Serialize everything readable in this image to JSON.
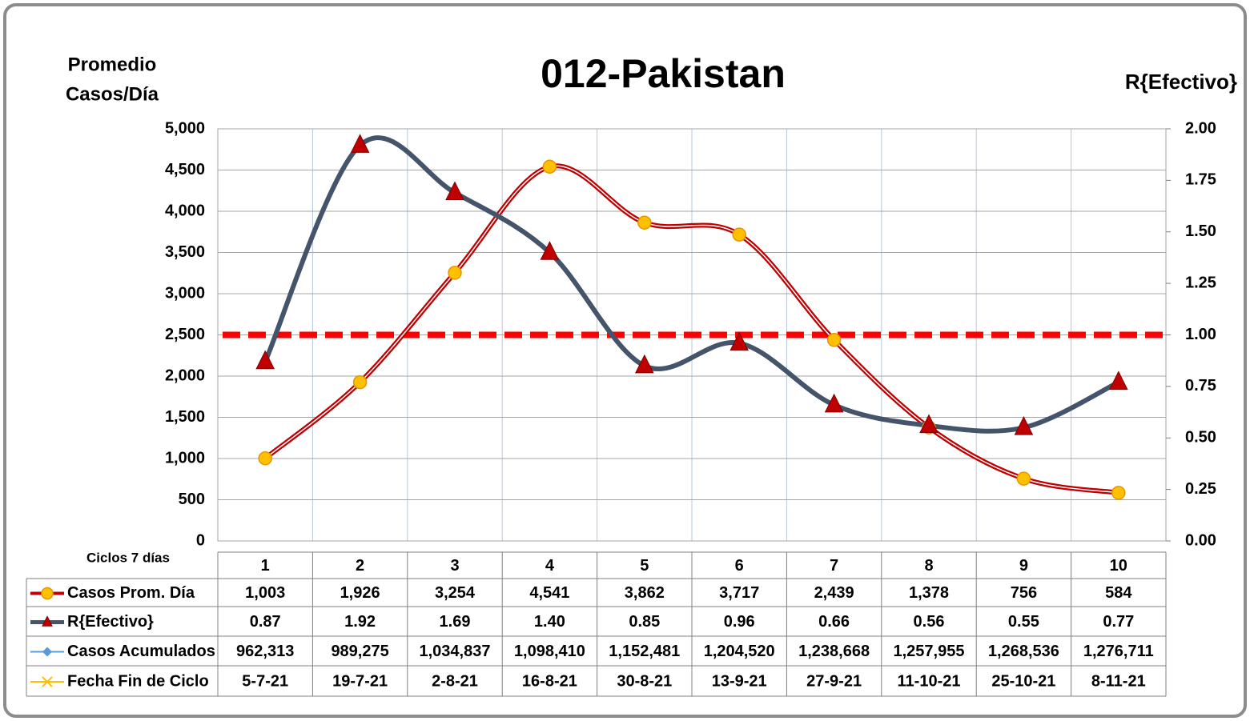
{
  "chart_data": {
    "type": "line",
    "title": "012-Pakistan",
    "y_label": [
      "Promedio",
      "Casos/Día"
    ],
    "y2_label": "R{Efectivo}",
    "table_label": "Ciclos 7 días",
    "categories": [
      "1",
      "2",
      "3",
      "4",
      "5",
      "6",
      "7",
      "8",
      "9",
      "10"
    ],
    "ylim": [
      0,
      5000
    ],
    "yticks": [
      0,
      500,
      {
        "value": 1000,
        "label": "1,000"
      },
      {
        "value": 1500,
        "label": "1,500"
      },
      {
        "value": 2000,
        "label": "2,000"
      },
      {
        "value": 2500,
        "label": "2,500"
      },
      {
        "value": 3000,
        "label": "3,000"
      },
      {
        "value": 3500,
        "label": "3,500"
      },
      {
        "value": 4000,
        "label": "4,000"
      },
      {
        "value": 4500,
        "label": "4,500"
      },
      {
        "value": 5000,
        "label": "5,000"
      }
    ],
    "y2lim": [
      0,
      2
    ],
    "y2ticks": [
      {
        "value": 0,
        "label": "0.00"
      },
      {
        "value": 0.25,
        "label": "0.25"
      },
      {
        "value": 0.5,
        "label": "0.50"
      },
      {
        "value": 0.75,
        "label": "0.75"
      },
      {
        "value": 1,
        "label": "1.00"
      },
      {
        "value": 1.25,
        "label": "1.25"
      },
      {
        "value": 1.5,
        "label": "1.50"
      },
      {
        "value": 1.75,
        "label": "1.75"
      },
      {
        "value": 2,
        "label": "2.00"
      }
    ],
    "grid": true,
    "reference_lines": [
      {
        "value": 1,
        "axis": "y2",
        "color": "#ff0000"
      }
    ],
    "series": [
      {
        "name": "Casos Prom. Día",
        "color": "#c00000",
        "marker": "circle",
        "marker_color": "#ffc000",
        "values": [
          1003,
          1926,
          3254,
          4541,
          3862,
          3717,
          2439,
          1378,
          756,
          584
        ],
        "value_labels": [
          "1,003",
          "1,926",
          "3,254",
          "4,541",
          "3,862",
          "3,717",
          "2,439",
          "1,378",
          "756",
          "584"
        ]
      },
      {
        "name": "R{Efectivo}",
        "color": "#44546a",
        "axis": "y2",
        "marker": "triangle",
        "marker_color": "#c00000",
        "values": [
          0.87,
          1.92,
          1.69,
          1.4,
          0.85,
          0.96,
          0.66,
          0.56,
          0.55,
          0.77
        ],
        "value_labels": [
          "0.87",
          "1.92",
          "1.69",
          "1.40",
          "0.85",
          "0.96",
          "0.66",
          "0.56",
          "0.55",
          "0.77"
        ]
      }
    ],
    "table_rows": [
      {
        "name": "Casos Acumulados",
        "color": "#5b9bd5",
        "marker": "diamond",
        "values": [
          962313,
          989275,
          1034837,
          1098410,
          1152481,
          1204520,
          1238668,
          1257955,
          1268536,
          1276711
        ],
        "value_labels": [
          "962,313",
          "989,275",
          "1,034,837",
          "1,098,410",
          "1,152,481",
          "1,204,520",
          "1,238,668",
          "1,257,955",
          "1,268,536",
          "1,276,711"
        ]
      },
      {
        "name": "Fecha Fin de Ciclo",
        "color": "#ffc000",
        "marker": "x",
        "labels": [
          "5-7-21",
          "19-7-21",
          "2-8-21",
          "16-8-21",
          "30-8-21",
          "13-9-21",
          "27-9-21",
          "11-10-21",
          "25-10-21",
          "8-11-21"
        ]
      }
    ]
  }
}
